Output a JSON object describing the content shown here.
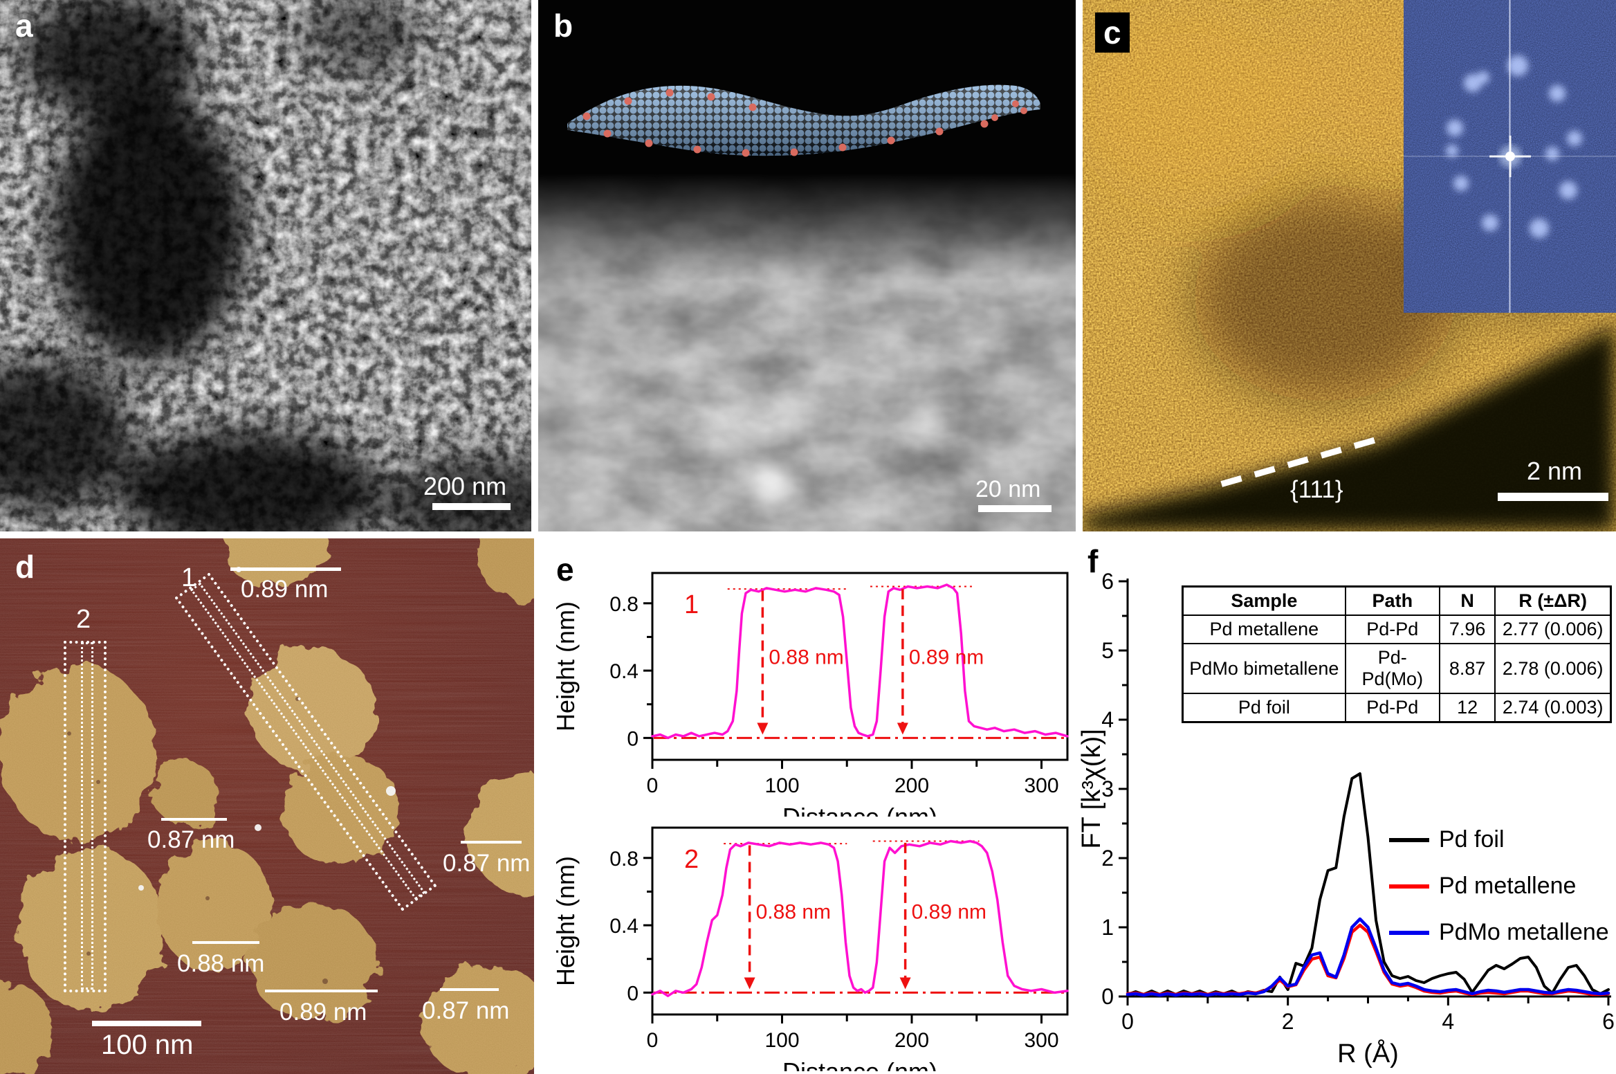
{
  "figure_panels": {
    "a": {
      "letter": "a",
      "scalebar": "200 nm"
    },
    "b": {
      "letter": "b",
      "scalebar": "20 nm"
    },
    "c": {
      "letter": "c",
      "scalebar": "2 nm",
      "plane": "{111}"
    },
    "d": {
      "letter": "d",
      "scalebar": "100 nm",
      "profile1": "1",
      "profile2": "2",
      "thickness": [
        {
          "t": "0.89 nm"
        },
        {
          "t": "0.87 nm"
        },
        {
          "t": "0.87 nm"
        },
        {
          "t": "0.88 nm"
        },
        {
          "t": "0.89 nm"
        },
        {
          "t": "0.87 nm"
        }
      ]
    },
    "e": {
      "letter": "e"
    },
    "f": {
      "letter": "f"
    }
  },
  "exafs_table": {
    "headers": [
      "Sample",
      "Path",
      "N",
      "R (±ΔR)"
    ],
    "rows": [
      [
        "Pd metallene",
        "Pd-Pd",
        "7.96",
        "2.77 (0.006)"
      ],
      [
        "PdMo bimetallene",
        "Pd-Pd(Mo)",
        "8.87",
        "2.78 (0.006)"
      ],
      [
        "Pd foil",
        "Pd-Pd",
        "12",
        "2.74 (0.003)"
      ]
    ]
  },
  "legend": {
    "items": [
      {
        "label": "Pd foil",
        "color": "#000000"
      },
      {
        "label": "Pd metallene",
        "color": "#ff0000"
      },
      {
        "label": "PdMo metallene",
        "color": "#0000ee"
      }
    ]
  },
  "chart_data": [
    {
      "id": "height-profile-1",
      "type": "line",
      "trace_label": "1",
      "xlabel": "Distance (nm)",
      "ylabel": "Height (nm)",
      "xlim": [
        0,
        320
      ],
      "ylim": [
        -0.13,
        0.98
      ],
      "xticks": [
        0,
        100,
        200,
        300
      ],
      "xminor": [
        50,
        150,
        250
      ],
      "yticks": [
        0,
        0.4,
        0.8
      ],
      "yminor": [
        0.2,
        0.6
      ],
      "line_color": "#ff10d0",
      "annotation_color": "#ee1111",
      "zero_line": true,
      "x": [
        0,
        6,
        12,
        18,
        24,
        30,
        36,
        42,
        48,
        54,
        58,
        62,
        65,
        67,
        69,
        72,
        76,
        82,
        88,
        95,
        102,
        110,
        118,
        126,
        134,
        140,
        144,
        147,
        150,
        153,
        156,
        159,
        162,
        166,
        170,
        173,
        176,
        179,
        182,
        186,
        191,
        197,
        204,
        212,
        220,
        227,
        232,
        235,
        238,
        241,
        244,
        248,
        253,
        258,
        264,
        271,
        279,
        287,
        295,
        303,
        311,
        320
      ],
      "y": [
        0.01,
        0.02,
        0.0,
        0.02,
        0.01,
        0.03,
        0.01,
        0.02,
        0.03,
        0.02,
        0.04,
        0.1,
        0.28,
        0.52,
        0.74,
        0.86,
        0.88,
        0.87,
        0.89,
        0.88,
        0.87,
        0.88,
        0.87,
        0.89,
        0.88,
        0.87,
        0.85,
        0.72,
        0.45,
        0.18,
        0.07,
        0.03,
        0.02,
        0.01,
        0.02,
        0.1,
        0.4,
        0.72,
        0.87,
        0.89,
        0.88,
        0.9,
        0.89,
        0.9,
        0.89,
        0.91,
        0.89,
        0.86,
        0.62,
        0.28,
        0.1,
        0.07,
        0.06,
        0.05,
        0.06,
        0.04,
        0.05,
        0.03,
        0.04,
        0.02,
        0.03,
        0.01
      ],
      "top_marks": [
        {
          "x1": 58,
          "x2": 150,
          "y": 0.885
        },
        {
          "x1": 168,
          "x2": 248,
          "y": 0.9
        }
      ],
      "arrows": [
        {
          "x": 85,
          "ytop": 0.875,
          "label": "0.88 nm"
        },
        {
          "x": 193,
          "ytop": 0.885,
          "label": "0.89 nm"
        }
      ]
    },
    {
      "id": "height-profile-2",
      "type": "line",
      "trace_label": "2",
      "xlabel": "Distance (nm)",
      "ylabel": "Height (nm)",
      "xlim": [
        0,
        320
      ],
      "ylim": [
        -0.13,
        0.98
      ],
      "xticks": [
        0,
        100,
        200,
        300
      ],
      "xminor": [
        50,
        150,
        250
      ],
      "yticks": [
        0,
        0.4,
        0.8
      ],
      "yminor": [
        0.2,
        0.6
      ],
      "line_color": "#ff10d0",
      "annotation_color": "#ee1111",
      "zero_line": true,
      "x": [
        0,
        6,
        12,
        18,
        24,
        30,
        34,
        38,
        42,
        46,
        50,
        54,
        57,
        60,
        64,
        68,
        74,
        82,
        90,
        98,
        106,
        114,
        122,
        130,
        136,
        140,
        143,
        146,
        149,
        152,
        155,
        158,
        161,
        164,
        167,
        170,
        173,
        176,
        179,
        183,
        187,
        192,
        198,
        206,
        214,
        222,
        230,
        238,
        245,
        250,
        254,
        258,
        262,
        266,
        270,
        274,
        279,
        285,
        292,
        300,
        310,
        320
      ],
      "y": [
        -0.01,
        0.01,
        -0.02,
        0.01,
        0.0,
        0.02,
        0.05,
        0.15,
        0.3,
        0.43,
        0.46,
        0.58,
        0.74,
        0.85,
        0.88,
        0.87,
        0.89,
        0.88,
        0.87,
        0.89,
        0.88,
        0.89,
        0.88,
        0.89,
        0.88,
        0.86,
        0.78,
        0.58,
        0.3,
        0.1,
        0.03,
        0.01,
        0.02,
        0.0,
        0.01,
        0.03,
        0.18,
        0.48,
        0.78,
        0.86,
        0.83,
        0.87,
        0.88,
        0.87,
        0.89,
        0.88,
        0.9,
        0.89,
        0.9,
        0.89,
        0.87,
        0.83,
        0.72,
        0.55,
        0.3,
        0.1,
        0.04,
        0.02,
        0.01,
        0.02,
        0.0,
        0.01
      ],
      "top_marks": [
        {
          "x1": 55,
          "x2": 150,
          "y": 0.885
        },
        {
          "x1": 170,
          "x2": 252,
          "y": 0.9
        }
      ],
      "arrows": [
        {
          "x": 75,
          "ytop": 0.875,
          "label": "0.88 nm"
        },
        {
          "x": 195,
          "ytop": 0.89,
          "label": "0.89 nm"
        }
      ]
    },
    {
      "id": "exafs-ft",
      "type": "line",
      "xlabel": "R (Å)",
      "ylabel": "FT [k³χ(k)]",
      "xlim": [
        0,
        6
      ],
      "ylim": [
        0,
        6
      ],
      "xticks": [
        0,
        2,
        4,
        6
      ],
      "yticks": [
        0,
        1,
        2,
        3,
        4,
        5,
        6
      ],
      "xminor_step": 0.5,
      "yminor_step": 0.5,
      "x_start": 0,
      "x_step": 0.1,
      "series": [
        {
          "name": "Pd foil",
          "color": "#000000",
          "y": [
            0.03,
            0.07,
            0.03,
            0.08,
            0.03,
            0.08,
            0.03,
            0.08,
            0.04,
            0.08,
            0.03,
            0.07,
            0.04,
            0.08,
            0.03,
            0.07,
            0.05,
            0.09,
            0.07,
            0.28,
            0.1,
            0.48,
            0.44,
            0.7,
            1.4,
            1.82,
            1.86,
            2.6,
            3.15,
            3.22,
            2.3,
            1.1,
            0.5,
            0.3,
            0.26,
            0.29,
            0.23,
            0.2,
            0.26,
            0.3,
            0.33,
            0.35,
            0.25,
            0.06,
            0.22,
            0.38,
            0.45,
            0.4,
            0.47,
            0.55,
            0.57,
            0.42,
            0.15,
            0.05,
            0.25,
            0.42,
            0.45,
            0.3,
            0.1,
            0.04,
            0.1
          ]
        },
        {
          "name": "Pd metallene",
          "color": "#ff0000",
          "y": [
            0.04,
            0.05,
            0.03,
            0.05,
            0.03,
            0.05,
            0.03,
            0.05,
            0.04,
            0.05,
            0.03,
            0.05,
            0.04,
            0.05,
            0.04,
            0.06,
            0.05,
            0.08,
            0.14,
            0.24,
            0.14,
            0.17,
            0.38,
            0.54,
            0.57,
            0.3,
            0.27,
            0.55,
            0.93,
            1.03,
            0.93,
            0.65,
            0.35,
            0.18,
            0.15,
            0.17,
            0.13,
            0.08,
            0.06,
            0.05,
            0.07,
            0.08,
            0.05,
            0.03,
            0.05,
            0.06,
            0.05,
            0.04,
            0.06,
            0.08,
            0.08,
            0.06,
            0.04,
            0.04,
            0.06,
            0.08,
            0.07,
            0.05,
            0.03,
            0.03,
            0.04
          ]
        },
        {
          "name": "PdMo metallene",
          "color": "#0000ee",
          "y": [
            0.03,
            0.04,
            0.02,
            0.04,
            0.02,
            0.04,
            0.02,
            0.04,
            0.03,
            0.04,
            0.02,
            0.04,
            0.03,
            0.04,
            0.03,
            0.05,
            0.04,
            0.07,
            0.15,
            0.27,
            0.15,
            0.18,
            0.42,
            0.6,
            0.63,
            0.33,
            0.28,
            0.6,
            1.0,
            1.12,
            1.0,
            0.7,
            0.38,
            0.2,
            0.17,
            0.19,
            0.15,
            0.1,
            0.08,
            0.07,
            0.09,
            0.1,
            0.07,
            0.04,
            0.07,
            0.09,
            0.08,
            0.06,
            0.08,
            0.1,
            0.1,
            0.08,
            0.06,
            0.05,
            0.08,
            0.1,
            0.09,
            0.07,
            0.05,
            0.04,
            0.05
          ]
        }
      ]
    }
  ]
}
